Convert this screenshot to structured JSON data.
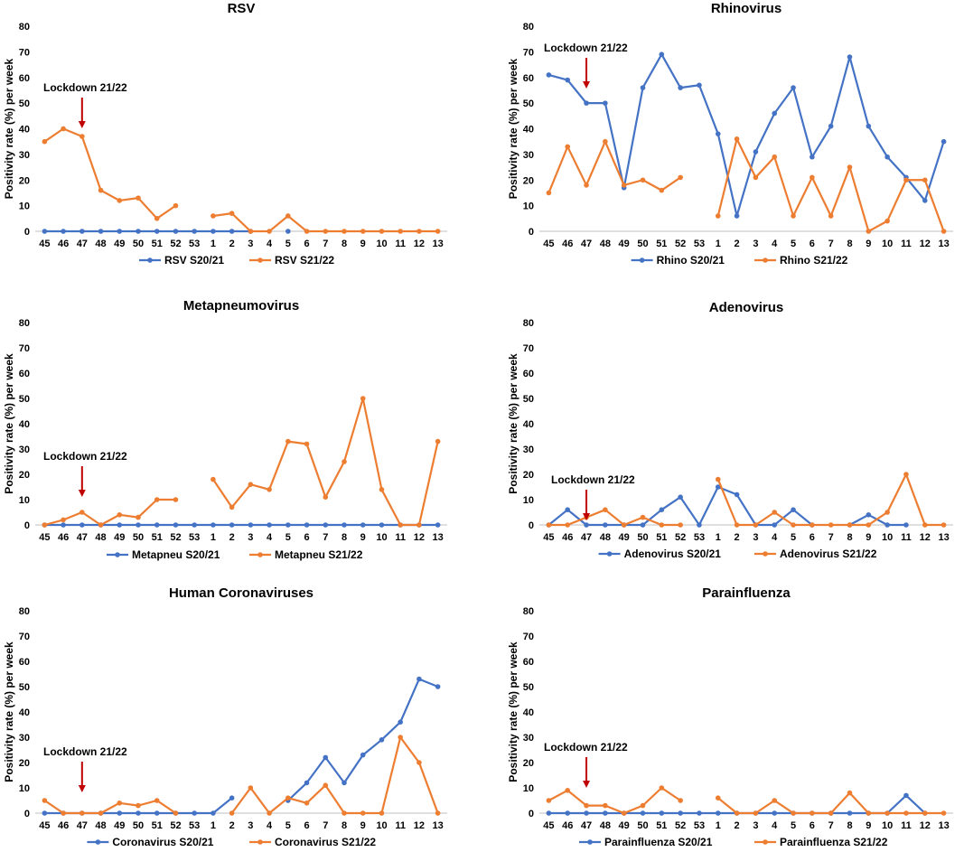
{
  "colors": {
    "s2021": "#4472c4",
    "s2122": "#ed7d31",
    "arrow": "#c00000",
    "axis": "#000000"
  },
  "chart_data": [
    {
      "type": "line",
      "title": "RSV",
      "ylabel": "Positivity rate (%) per week",
      "ylim": [
        0,
        80
      ],
      "yticks": [
        "0",
        "10",
        "20",
        "30",
        "40",
        "50",
        "60",
        "70",
        "80"
      ],
      "categories": [
        "45",
        "46",
        "47",
        "48",
        "49",
        "50",
        "51",
        "52",
        "53",
        "1",
        "2",
        "3",
        "4",
        "5",
        "6",
        "7",
        "8",
        "9",
        "10",
        "11",
        "12",
        "13"
      ],
      "series": [
        {
          "name": "RSV S20/21",
          "color": "#4472c4",
          "values": [
            0,
            0,
            0,
            0,
            0,
            0,
            0,
            0,
            0,
            0,
            0,
            0,
            null,
            0,
            null,
            null,
            null,
            null,
            null,
            null,
            null,
            null
          ]
        },
        {
          "name": "RSV S21/22",
          "color": "#ed7d31",
          "values": [
            35,
            40,
            37,
            16,
            12,
            13,
            5,
            10,
            null,
            6,
            7,
            0,
            0,
            6,
            0,
            0,
            0,
            0,
            0,
            0,
            0,
            0
          ]
        }
      ],
      "annotation": {
        "text": "Lockdown 21/22",
        "category_index": 2
      }
    },
    {
      "type": "line",
      "title": "Rhinovirus",
      "ylabel": "Positivity rate (%) per week",
      "ylim": [
        0,
        80
      ],
      "yticks": [
        "0",
        "10",
        "20",
        "30",
        "40",
        "50",
        "60",
        "70",
        "80"
      ],
      "categories": [
        "45",
        "46",
        "47",
        "48",
        "49",
        "50",
        "51",
        "52",
        "53",
        "1",
        "2",
        "3",
        "4",
        "5",
        "6",
        "7",
        "8",
        "9",
        "10",
        "11",
        "12",
        "13"
      ],
      "series": [
        {
          "name": "Rhino S20/21",
          "color": "#4472c4",
          "values": [
            61,
            59,
            50,
            50,
            17,
            56,
            69,
            56,
            57,
            38,
            6,
            31,
            46,
            56,
            29,
            41,
            68,
            41,
            29,
            21,
            12,
            35
          ]
        },
        {
          "name": "Rhino S21/22",
          "color": "#ed7d31",
          "values": [
            15,
            33,
            18,
            35,
            18,
            20,
            16,
            21,
            null,
            6,
            36,
            21,
            29,
            6,
            21,
            6,
            25,
            0,
            4,
            20,
            20,
            0
          ]
        }
      ],
      "annotation": {
        "text": "Lockdown 21/22",
        "category_index": 2
      }
    },
    {
      "type": "line",
      "title": "Metapneumovirus",
      "ylabel": "Positivity rate (%) per week",
      "ylim": [
        0,
        80
      ],
      "yticks": [
        "0",
        "10",
        "20",
        "30",
        "40",
        "50",
        "60",
        "70",
        "80"
      ],
      "categories": [
        "45",
        "46",
        "47",
        "48",
        "49",
        "50",
        "51",
        "52",
        "53",
        "1",
        "2",
        "3",
        "4",
        "5",
        "6",
        "7",
        "8",
        "9",
        "10",
        "11",
        "12",
        "13"
      ],
      "series": [
        {
          "name": "Metapneu S20/21",
          "color": "#4472c4",
          "values": [
            0,
            0,
            0,
            0,
            0,
            0,
            0,
            0,
            0,
            0,
            0,
            0,
            0,
            0,
            0,
            0,
            0,
            0,
            0,
            0,
            0,
            0
          ]
        },
        {
          "name": "Metapneu S21/22",
          "color": "#ed7d31",
          "values": [
            0,
            2,
            5,
            0,
            4,
            3,
            10,
            10,
            null,
            18,
            7,
            16,
            14,
            33,
            32,
            11,
            25,
            50,
            14,
            0,
            0,
            33
          ]
        }
      ],
      "annotation": {
        "text": "Lockdown 21/22",
        "category_index": 2
      }
    },
    {
      "type": "line",
      "title": "Adenovirus",
      "ylabel": "Positivity rate (%) per week",
      "ylim": [
        0,
        80
      ],
      "yticks": [
        "0",
        "10",
        "20",
        "30",
        "40",
        "50",
        "60",
        "70",
        "80"
      ],
      "categories": [
        "45",
        "46",
        "47",
        "48",
        "49",
        "50",
        "51",
        "52",
        "53",
        "1",
        "2",
        "3",
        "4",
        "5",
        "6",
        "7",
        "8",
        "9",
        "10",
        "11",
        "12",
        "13"
      ],
      "series": [
        {
          "name": "Adenovirus S20/21",
          "color": "#4472c4",
          "values": [
            0,
            6,
            0,
            0,
            0,
            0,
            6,
            11,
            0,
            15,
            12,
            0,
            0,
            6,
            0,
            null,
            0,
            4,
            0,
            0,
            null,
            null
          ]
        },
        {
          "name": "Adenovirus S21/22",
          "color": "#ed7d31",
          "values": [
            0,
            0,
            3,
            6,
            0,
            3,
            0,
            0,
            null,
            18,
            0,
            0,
            5,
            0,
            0,
            0,
            0,
            0,
            5,
            20,
            0,
            0
          ]
        }
      ],
      "annotation": {
        "text": "Lockdown 21/22",
        "category_index": 2
      }
    },
    {
      "type": "line",
      "title": "Human Coronaviruses",
      "ylabel": "Positivity rate (%) per week",
      "ylim": [
        0,
        80
      ],
      "yticks": [
        "0",
        "10",
        "20",
        "30",
        "40",
        "50",
        "60",
        "70",
        "80"
      ],
      "categories": [
        "45",
        "46",
        "47",
        "48",
        "49",
        "50",
        "51",
        "52",
        "53",
        "1",
        "2",
        "3",
        "4",
        "5",
        "6",
        "7",
        "8",
        "9",
        "10",
        "11",
        "12",
        "13"
      ],
      "series": [
        {
          "name": "Coronavirus S20/21",
          "color": "#4472c4",
          "values": [
            0,
            0,
            0,
            0,
            0,
            0,
            0,
            0,
            0,
            0,
            6,
            null,
            null,
            5,
            12,
            22,
            12,
            23,
            29,
            36,
            53,
            50
          ]
        },
        {
          "name": "Coronavirus S21/22",
          "color": "#ed7d31",
          "values": [
            5,
            0,
            0,
            0,
            4,
            3,
            5,
            0,
            null,
            null,
            0,
            10,
            0,
            6,
            4,
            11,
            0,
            0,
            0,
            30,
            20,
            0
          ]
        }
      ],
      "annotation": {
        "text": "Lockdown 21/22",
        "category_index": 2
      }
    },
    {
      "type": "line",
      "title": "Parainfluenza",
      "ylabel": "Positivity rate (%) per week",
      "ylim": [
        0,
        80
      ],
      "yticks": [
        "0",
        "10",
        "20",
        "30",
        "40",
        "50",
        "60",
        "70",
        "80"
      ],
      "categories": [
        "45",
        "46",
        "47",
        "48",
        "49",
        "50",
        "51",
        "52",
        "53",
        "1",
        "2",
        "3",
        "4",
        "5",
        "6",
        "7",
        "8",
        "9",
        "10",
        "11",
        "12",
        "13"
      ],
      "series": [
        {
          "name": "Parainfluenza S20/21",
          "color": "#4472c4",
          "values": [
            0,
            0,
            0,
            0,
            0,
            0,
            0,
            0,
            0,
            0,
            0,
            0,
            0,
            0,
            0,
            0,
            0,
            0,
            0,
            7,
            0,
            null
          ]
        },
        {
          "name": "Parainfluenza S21/22",
          "color": "#ed7d31",
          "values": [
            5,
            9,
            3,
            3,
            0,
            3,
            10,
            5,
            null,
            6,
            0,
            0,
            5,
            0,
            0,
            0,
            8,
            0,
            0,
            0,
            0,
            0
          ]
        }
      ],
      "annotation": {
        "text": "Lockdown 21/22",
        "category_index": 2
      }
    }
  ]
}
